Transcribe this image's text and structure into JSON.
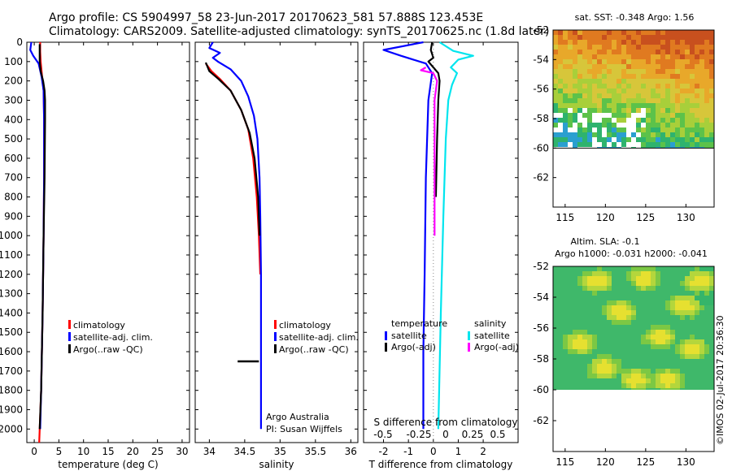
{
  "header": {
    "line1": "Argo profile: CS 5904997_58 23-Jun-2017 20170623_581 57.888S 123.453E",
    "line2": "Climatology: CARS2009. Satellite-adjusted climatology: synTS_20170625.nc (1.8d later)"
  },
  "colors": {
    "climatology": "#ff0000",
    "satellite": "#0000ff",
    "argo": "#000000",
    "sal_satellite": "#00e5ee",
    "sal_argo": "#ff00ff"
  },
  "depth_ticks": [
    "0",
    "100",
    "200",
    "300",
    "400",
    "500",
    "600",
    "700",
    "800",
    "900",
    "1000",
    "1100",
    "1200",
    "1300",
    "1400",
    "1500",
    "1600",
    "1700",
    "1800",
    "1900",
    "2000"
  ],
  "chart_data": [
    {
      "type": "line",
      "panel": "temperature",
      "xlabel": "temperature (deg C)",
      "ylabel": "",
      "xlim": [
        -1.5,
        31.5
      ],
      "ylim": [
        2070,
        0
      ],
      "xticks": [
        "0",
        "5",
        "10",
        "15",
        "20",
        "25",
        "30"
      ],
      "legend": [
        "climatology",
        "satellite-adj. clim.",
        "Argo(..raw -QC)"
      ],
      "legend_position": "lower-left",
      "series": [
        {
          "name": "climatology",
          "color": "#ff0000",
          "points": [
            [
              1.2,
              0
            ],
            [
              1.2,
              50
            ],
            [
              1.3,
              100
            ],
            [
              1.6,
              180
            ],
            [
              1.9,
              250
            ],
            [
              2.0,
              400
            ],
            [
              2.0,
              700
            ],
            [
              1.9,
              1000
            ],
            [
              1.7,
              1400
            ],
            [
              1.4,
              1800
            ],
            [
              1.0,
              2070
            ]
          ]
        },
        {
          "name": "satellite-adj. clim.",
          "color": "#0000ff",
          "points": [
            [
              -0.6,
              0
            ],
            [
              -0.8,
              40
            ],
            [
              -0.2,
              70
            ],
            [
              0.9,
              110
            ],
            [
              1.5,
              180
            ],
            [
              1.9,
              250
            ],
            [
              2.0,
              400
            ],
            [
              2.0,
              700
            ],
            [
              1.9,
              1000
            ],
            [
              1.7,
              1400
            ],
            [
              1.4,
              1800
            ],
            [
              1.2,
              2000
            ]
          ]
        },
        {
          "name": "Argo(..raw -QC)",
          "color": "#000000",
          "points": [
            [
              1.1,
              10
            ],
            [
              1.1,
              100
            ],
            [
              1.3,
              150
            ],
            [
              1.8,
              200
            ],
            [
              2.1,
              250
            ],
            [
              2.2,
              300
            ],
            [
              2.2,
              400
            ],
            [
              2.1,
              700
            ],
            [
              1.9,
              1000
            ],
            [
              1.7,
              1400
            ],
            [
              1.4,
              1800
            ],
            [
              1.1,
              2000
            ]
          ]
        }
      ]
    },
    {
      "type": "line",
      "panel": "salinity",
      "xlabel": "salinity",
      "ylabel": "",
      "xlim": [
        33.8,
        36.1
      ],
      "ylim": [
        2070,
        0
      ],
      "xticks": [
        "34",
        "34.5",
        "35",
        "35.5",
        "36"
      ],
      "legend": [
        "climatology",
        "satellite-adj. clim.",
        "Argo(..raw -QC)"
      ],
      "legend_position": "lower-right",
      "annotation": [
        "Argo Australia",
        "PI: Susan Wijffels"
      ],
      "series": [
        {
          "name": "climatology",
          "color": "#ff0000",
          "points": [
            [
              33.95,
              110
            ],
            [
              34.03,
              150
            ],
            [
              34.15,
              190
            ],
            [
              34.3,
              250
            ],
            [
              34.45,
              350
            ],
            [
              34.55,
              450
            ],
            [
              34.62,
              600
            ],
            [
              34.67,
              800
            ],
            [
              34.7,
              1000
            ],
            [
              34.72,
              1200
            ]
          ]
        },
        {
          "name": "satellite-adj. clim.",
          "color": "#0000ff",
          "points": [
            [
              34.05,
              0
            ],
            [
              34.0,
              30
            ],
            [
              34.15,
              55
            ],
            [
              34.05,
              80
            ],
            [
              34.12,
              100
            ],
            [
              34.3,
              140
            ],
            [
              34.45,
              200
            ],
            [
              34.55,
              280
            ],
            [
              34.63,
              380
            ],
            [
              34.68,
              500
            ],
            [
              34.71,
              700
            ],
            [
              34.72,
              900
            ],
            [
              34.73,
              1200
            ],
            [
              34.73,
              1600
            ],
            [
              34.73,
              2000
            ]
          ]
        },
        {
          "name": "Argo(..raw -QC)",
          "color": "#000000",
          "points": [
            [
              33.95,
              105
            ],
            [
              34.0,
              150
            ],
            [
              34.13,
              190
            ],
            [
              34.3,
              250
            ],
            [
              34.45,
              350
            ],
            [
              34.57,
              470
            ],
            [
              34.64,
              600
            ],
            [
              34.69,
              800
            ],
            [
              34.71,
              1000
            ]
          ]
        },
        {
          "name": "Argo outlier",
          "color": "#000000",
          "points": [
            [
              34.4,
              1650
            ],
            [
              34.7,
              1650
            ]
          ]
        }
      ]
    },
    {
      "type": "line",
      "panel": "difference",
      "xlabel": "T difference from climatology",
      "xlabel_top": "S difference from climatology",
      "xlim": [
        -2.8,
        3.4
      ],
      "ylim": [
        2070,
        0
      ],
      "xticks": [
        "-2",
        "-1",
        "0",
        "1",
        "2"
      ],
      "xticks_top": [
        "-0.5",
        "-0.25",
        "0",
        "0.25",
        "0.5"
      ],
      "legend_headings": [
        "temperature",
        "salinity"
      ],
      "legend": [
        "satellite",
        "Argo(-adj)",
        "satellite",
        "Argo(-adj)"
      ],
      "legend_position": "lower-center",
      "series": [
        {
          "name": "temperature satellite",
          "color": "#0000ff",
          "points": [
            [
              -0.4,
              0
            ],
            [
              -2.0,
              40
            ],
            [
              -1.3,
              70
            ],
            [
              -0.3,
              110
            ],
            [
              -0.05,
              160
            ],
            [
              -0.2,
              300
            ],
            [
              -0.3,
              700
            ],
            [
              -0.35,
              1200
            ],
            [
              -0.4,
              1600
            ],
            [
              -0.4,
              2000
            ]
          ]
        },
        {
          "name": "temperature Argo(-adj)",
          "color": "#000000",
          "points": [
            [
              -0.05,
              0
            ],
            [
              -0.1,
              40
            ],
            [
              0.0,
              80
            ],
            [
              -0.2,
              100
            ],
            [
              0.0,
              130
            ],
            [
              0.2,
              160
            ],
            [
              0.25,
              200
            ],
            [
              0.2,
              300
            ],
            [
              0.15,
              500
            ],
            [
              0.1,
              800
            ]
          ]
        },
        {
          "name": "salinity satellite",
          "color": "#00e5ee",
          "points": [
            [
              0.25,
              0
            ],
            [
              0.8,
              45
            ],
            [
              1.6,
              70
            ],
            [
              1.0,
              90
            ],
            [
              0.7,
              130
            ],
            [
              0.95,
              160
            ],
            [
              0.75,
              220
            ],
            [
              0.6,
              300
            ],
            [
              0.5,
              500
            ],
            [
              0.4,
              900
            ],
            [
              0.3,
              1400
            ],
            [
              0.2,
              2000
            ]
          ]
        },
        {
          "name": "salinity Argo(-adj)",
          "color": "#ff00ff",
          "points": [
            [
              -0.3,
              130
            ],
            [
              -0.5,
              145
            ],
            [
              0.0,
              160
            ],
            [
              0.15,
              200
            ],
            [
              0.05,
              300
            ],
            [
              0.05,
              600
            ],
            [
              0.05,
              1000
            ]
          ]
        }
      ]
    },
    {
      "type": "heatmap",
      "panel": "sat-sst-map",
      "title": "sat. SST: -0.348 Argo: 1.56",
      "xlim": [
        113.5,
        133.5
      ],
      "ylim": [
        -64,
        -52
      ],
      "xticks": [
        "115",
        "120",
        "125",
        "130"
      ],
      "yticks": [
        "-52",
        "-54",
        "-56",
        "-58",
        "-60",
        "-62"
      ],
      "data_extent_lat": [
        -60,
        -52
      ]
    },
    {
      "type": "heatmap",
      "panel": "altimetry-map",
      "title": "Altim. SLA: -0.1",
      "subtitle": "Argo h1000: -0.031 h2000: -0.041",
      "xlim": [
        113.5,
        133.5
      ],
      "ylim": [
        -64,
        -52
      ],
      "xticks": [
        "115",
        "120",
        "125",
        "130"
      ],
      "yticks": [
        "-52",
        "-54",
        "-56",
        "-58",
        "-60",
        "-62"
      ],
      "data_extent_lat": [
        -60,
        -52
      ]
    }
  ],
  "footer": {
    "stamp": "©IMOS 02-Jul-2017 20:36:30"
  }
}
